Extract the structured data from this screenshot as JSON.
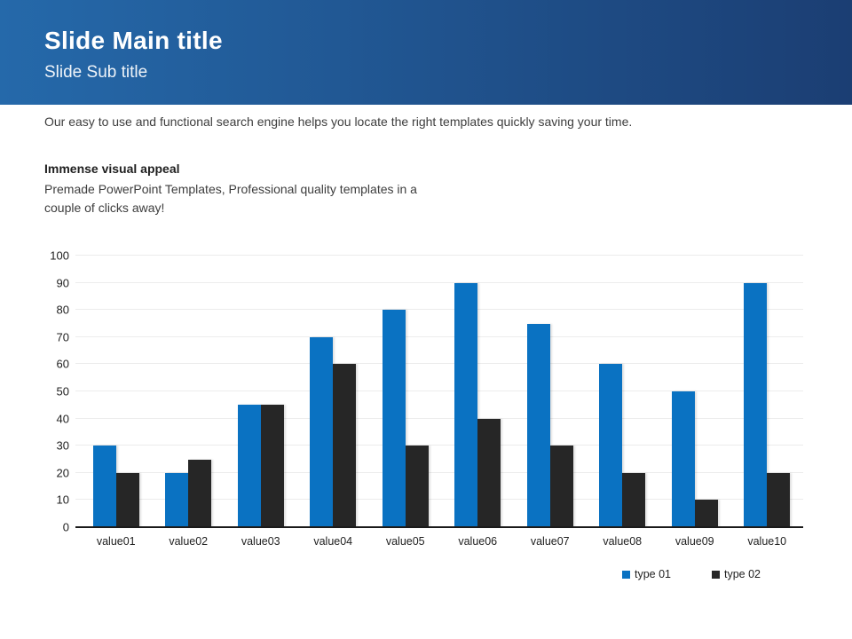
{
  "header": {
    "title": "Slide Main title",
    "subtitle": "Slide Sub title",
    "gradient_left": "#2569aa",
    "gradient_right": "#1b3e73"
  },
  "body": {
    "intro": "Our easy to use and functional search engine helps you locate the right templates quickly saving your time.",
    "heading": "Immense visual appeal",
    "description": "Premade PowerPoint Templates, Professional quality templates in a couple of clicks away!"
  },
  "chart_data": {
    "type": "bar",
    "title": "",
    "xlabel": "",
    "ylabel": "",
    "categories": [
      "value01",
      "value02",
      "value03",
      "value04",
      "value05",
      "value06",
      "value07",
      "value08",
      "value09",
      "value10"
    ],
    "series": [
      {
        "name": "type 01",
        "color": "#0a72c2",
        "values": [
          30,
          20,
          45,
          70,
          80,
          90,
          75,
          60,
          50,
          90
        ]
      },
      {
        "name": "type 02",
        "color": "#262626",
        "values": [
          20,
          25,
          45,
          60,
          30,
          40,
          30,
          20,
          10,
          20
        ]
      }
    ],
    "ylim": [
      0,
      100
    ],
    "ytick_step": 10,
    "grid": true,
    "legend_position": "bottom-right"
  }
}
